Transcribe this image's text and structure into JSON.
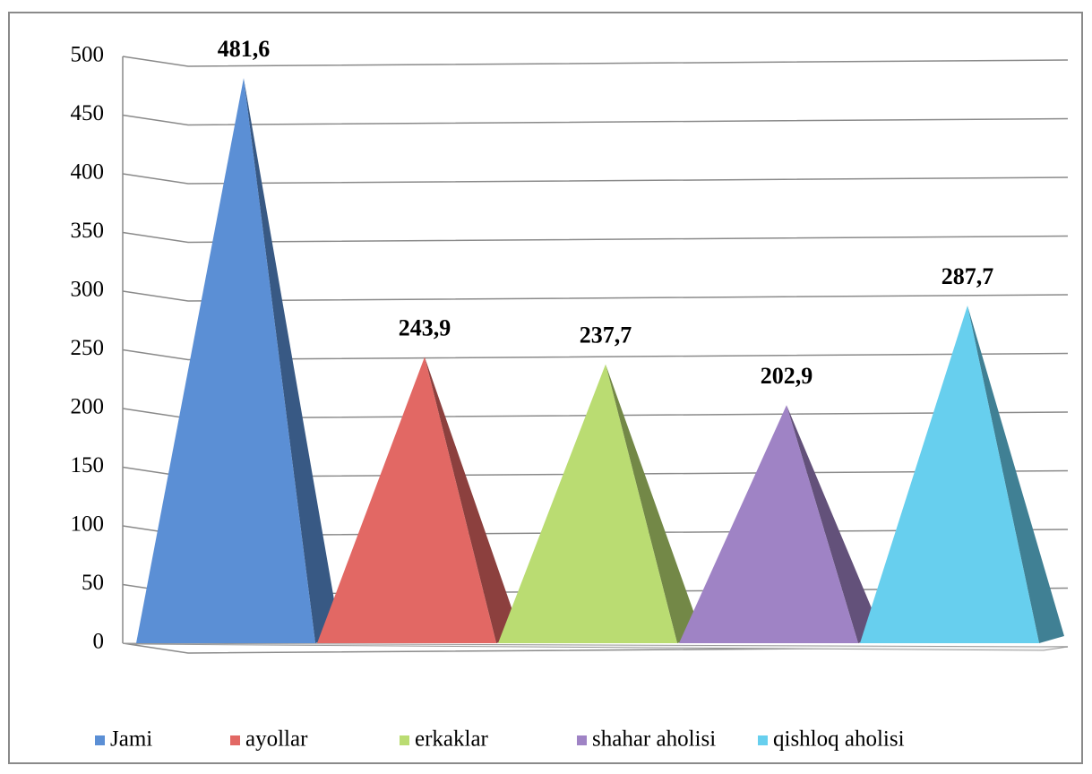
{
  "chart_data": {
    "type": "pyramid",
    "series": [
      {
        "name": "Jami",
        "color": "#5b8fd5",
        "values": [
          481.6
        ],
        "value_labels": [
          "481,6"
        ]
      },
      {
        "name": "ayollar",
        "color": "#e26864",
        "values": [
          243.9
        ],
        "value_labels": [
          "243,9"
        ]
      },
      {
        "name": "erkaklar",
        "color": "#badc72",
        "values": [
          237.7
        ],
        "value_labels": [
          "237,7"
        ]
      },
      {
        "name": "shahar aholisi",
        "color": "#9f83c5",
        "values": [
          202.9
        ],
        "value_labels": [
          "202,9"
        ]
      },
      {
        "name": "qishloq aholisi",
        "color": "#67cfee",
        "values": [
          287.7
        ],
        "value_labels": [
          "287,7"
        ]
      }
    ],
    "ylim": [
      0,
      500
    ],
    "yticks": [
      0,
      50,
      100,
      150,
      200,
      250,
      300,
      350,
      400,
      450,
      500
    ],
    "grid": true,
    "legend": "bottom"
  }
}
